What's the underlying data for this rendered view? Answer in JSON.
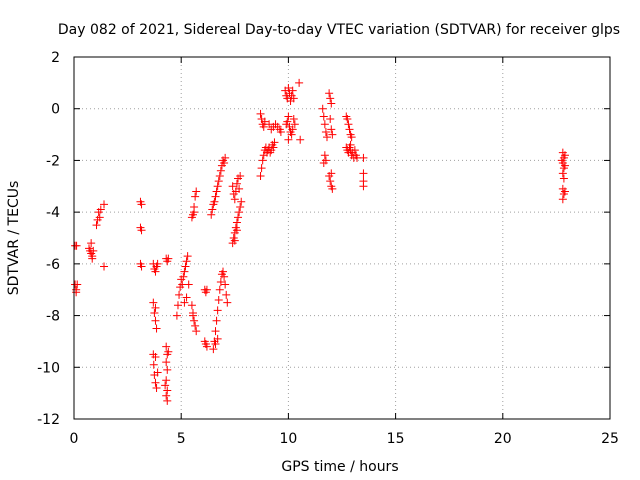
{
  "chart_data": {
    "type": "scatter",
    "title": "Day 082 of 2021, Sidereal Day-to-day VTEC variation (SDTVAR) for receiver glps",
    "xlabel": "GPS time / hours",
    "ylabel": "SDTVAR / TECUs",
    "xlim": [
      0,
      25
    ],
    "ylim": [
      -12,
      2
    ],
    "xticks": [
      0,
      5,
      10,
      15,
      20,
      25
    ],
    "yticks": [
      -12,
      -10,
      -8,
      -6,
      -4,
      -2,
      0,
      2
    ],
    "grid": true,
    "marker": "+",
    "color": "#ff0000",
    "series": [
      {
        "name": "glps",
        "points": [
          [
            0.05,
            -5.3
          ],
          [
            0.12,
            -5.3
          ],
          [
            0.05,
            -6.8
          ],
          [
            0.1,
            -7.0
          ],
          [
            0.15,
            -6.8
          ],
          [
            0.1,
            -7.1
          ],
          [
            0.7,
            -5.4
          ],
          [
            0.75,
            -5.5
          ],
          [
            0.8,
            -5.6
          ],
          [
            0.85,
            -5.8
          ],
          [
            0.9,
            -5.5
          ],
          [
            0.8,
            -5.2
          ],
          [
            0.85,
            -5.7
          ],
          [
            1.05,
            -4.5
          ],
          [
            1.1,
            -4.3
          ],
          [
            1.15,
            -4.0
          ],
          [
            1.2,
            -4.2
          ],
          [
            1.25,
            -3.9
          ],
          [
            1.4,
            -3.7
          ],
          [
            1.4,
            -6.1
          ],
          [
            3.1,
            -3.6
          ],
          [
            3.15,
            -3.7
          ],
          [
            3.1,
            -4.6
          ],
          [
            3.15,
            -4.7
          ],
          [
            3.1,
            -6.0
          ],
          [
            3.15,
            -6.1
          ],
          [
            3.7,
            -6.0
          ],
          [
            3.75,
            -6.2
          ],
          [
            3.8,
            -6.3
          ],
          [
            3.85,
            -6.1
          ],
          [
            3.9,
            -6.0
          ],
          [
            3.7,
            -7.5
          ],
          [
            3.75,
            -7.9
          ],
          [
            3.8,
            -8.2
          ],
          [
            3.85,
            -8.5
          ],
          [
            3.8,
            -7.7
          ],
          [
            3.7,
            -9.5
          ],
          [
            3.72,
            -9.9
          ],
          [
            3.75,
            -10.3
          ],
          [
            3.8,
            -10.6
          ],
          [
            3.85,
            -10.8
          ],
          [
            3.9,
            -10.2
          ],
          [
            3.8,
            -9.6
          ],
          [
            4.3,
            -5.8
          ],
          [
            4.35,
            -5.9
          ],
          [
            4.4,
            -5.8
          ],
          [
            4.3,
            -9.2
          ],
          [
            4.35,
            -9.5
          ],
          [
            4.3,
            -9.8
          ],
          [
            4.35,
            -10.1
          ],
          [
            4.3,
            -10.5
          ],
          [
            4.35,
            -10.9
          ],
          [
            4.3,
            -11.1
          ],
          [
            4.35,
            -11.3
          ],
          [
            4.25,
            -10.7
          ],
          [
            4.4,
            -9.4
          ],
          [
            4.8,
            -8.0
          ],
          [
            4.85,
            -7.6
          ],
          [
            4.9,
            -7.2
          ],
          [
            4.95,
            -6.9
          ],
          [
            5.0,
            -6.6
          ],
          [
            5.05,
            -6.8
          ],
          [
            5.1,
            -6.5
          ],
          [
            5.15,
            -6.3
          ],
          [
            5.2,
            -6.1
          ],
          [
            5.25,
            -5.9
          ],
          [
            5.3,
            -5.7
          ],
          [
            5.15,
            -7.5
          ],
          [
            5.25,
            -7.3
          ],
          [
            5.35,
            -6.8
          ],
          [
            5.5,
            -4.2
          ],
          [
            5.55,
            -4.1
          ],
          [
            5.6,
            -3.8
          ],
          [
            5.65,
            -3.4
          ],
          [
            5.7,
            -3.2
          ],
          [
            5.6,
            -4.0
          ],
          [
            5.5,
            -7.6
          ],
          [
            5.55,
            -7.9
          ],
          [
            5.6,
            -8.2
          ],
          [
            5.65,
            -8.4
          ],
          [
            5.7,
            -8.6
          ],
          [
            5.55,
            -8.0
          ],
          [
            6.1,
            -7.0
          ],
          [
            6.15,
            -7.1
          ],
          [
            6.2,
            -7.0
          ],
          [
            6.1,
            -9.0
          ],
          [
            6.15,
            -9.1
          ],
          [
            6.2,
            -9.2
          ],
          [
            6.4,
            -4.1
          ],
          [
            6.45,
            -3.9
          ],
          [
            6.5,
            -3.7
          ],
          [
            6.55,
            -3.6
          ],
          [
            6.6,
            -3.4
          ],
          [
            6.65,
            -3.2
          ],
          [
            6.7,
            -3.0
          ],
          [
            6.75,
            -2.8
          ],
          [
            6.8,
            -2.6
          ],
          [
            6.85,
            -2.4
          ],
          [
            6.9,
            -2.2
          ],
          [
            6.95,
            -2.0
          ],
          [
            7.0,
            -2.1
          ],
          [
            7.05,
            -1.9
          ],
          [
            6.5,
            -9.3
          ],
          [
            6.55,
            -9.0
          ],
          [
            6.6,
            -8.6
          ],
          [
            6.65,
            -8.2
          ],
          [
            6.7,
            -7.8
          ],
          [
            6.75,
            -7.4
          ],
          [
            6.8,
            -7.0
          ],
          [
            6.85,
            -6.7
          ],
          [
            6.9,
            -6.4
          ],
          [
            6.95,
            -6.3
          ],
          [
            7.0,
            -6.5
          ],
          [
            7.05,
            -6.8
          ],
          [
            7.1,
            -7.2
          ],
          [
            7.15,
            -7.5
          ],
          [
            6.6,
            -9.1
          ],
          [
            6.7,
            -8.9
          ],
          [
            7.4,
            -3.0
          ],
          [
            7.45,
            -3.3
          ],
          [
            7.5,
            -3.5
          ],
          [
            7.55,
            -3.2
          ],
          [
            7.6,
            -2.9
          ],
          [
            7.65,
            -2.7
          ],
          [
            7.7,
            -3.1
          ],
          [
            7.75,
            -2.6
          ],
          [
            7.4,
            -5.2
          ],
          [
            7.45,
            -5.0
          ],
          [
            7.5,
            -4.8
          ],
          [
            7.55,
            -4.6
          ],
          [
            7.6,
            -4.4
          ],
          [
            7.65,
            -4.2
          ],
          [
            7.7,
            -4.0
          ],
          [
            7.75,
            -3.8
          ],
          [
            7.8,
            -3.6
          ],
          [
            7.5,
            -5.1
          ],
          [
            7.6,
            -4.7
          ],
          [
            8.7,
            -0.2
          ],
          [
            8.75,
            -0.4
          ],
          [
            8.8,
            -0.6
          ],
          [
            8.85,
            -0.7
          ],
          [
            8.9,
            -0.5
          ],
          [
            8.7,
            -2.6
          ],
          [
            8.75,
            -2.3
          ],
          [
            8.8,
            -2.0
          ],
          [
            8.85,
            -1.8
          ],
          [
            8.9,
            -1.6
          ],
          [
            8.95,
            -1.5
          ],
          [
            9.0,
            -1.7
          ],
          [
            9.05,
            -1.6
          ],
          [
            9.1,
            -1.5
          ],
          [
            9.15,
            -1.7
          ],
          [
            9.2,
            -1.6
          ],
          [
            9.25,
            -1.4
          ],
          [
            9.3,
            -1.5
          ],
          [
            9.35,
            -1.3
          ],
          [
            9.1,
            -0.6
          ],
          [
            9.2,
            -0.8
          ],
          [
            9.3,
            -0.7
          ],
          [
            9.4,
            -0.6
          ],
          [
            9.5,
            -0.7
          ],
          [
            9.6,
            -0.8
          ],
          [
            9.65,
            -0.9
          ],
          [
            9.85,
            0.7
          ],
          [
            9.9,
            0.5
          ],
          [
            9.95,
            0.4
          ],
          [
            10.0,
            0.8
          ],
          [
            10.05,
            0.6
          ],
          [
            10.1,
            0.3
          ],
          [
            10.15,
            0.5
          ],
          [
            10.2,
            0.7
          ],
          [
            10.25,
            0.4
          ],
          [
            9.9,
            -0.6
          ],
          [
            9.95,
            -0.5
          ],
          [
            10.0,
            -0.3
          ],
          [
            10.05,
            -0.7
          ],
          [
            10.1,
            -0.9
          ],
          [
            10.15,
            -1.0
          ],
          [
            10.2,
            -0.8
          ],
          [
            10.25,
            -0.4
          ],
          [
            10.3,
            -0.6
          ],
          [
            10.0,
            -1.2
          ],
          [
            10.5,
            1.0
          ],
          [
            10.55,
            -1.2
          ],
          [
            11.6,
            0.0
          ],
          [
            11.65,
            -0.3
          ],
          [
            11.7,
            -0.6
          ],
          [
            11.75,
            -0.9
          ],
          [
            11.8,
            -1.1
          ],
          [
            11.7,
            -1.8
          ],
          [
            11.75,
            -2.0
          ],
          [
            11.65,
            -2.1
          ],
          [
            11.9,
            0.6
          ],
          [
            11.95,
            0.4
          ],
          [
            12.0,
            0.2
          ],
          [
            11.95,
            -0.4
          ],
          [
            12.0,
            -0.8
          ],
          [
            12.05,
            -1.0
          ],
          [
            11.9,
            -2.6
          ],
          [
            11.95,
            -2.8
          ],
          [
            12.0,
            -3.0
          ],
          [
            12.05,
            -3.1
          ],
          [
            12.0,
            -2.5
          ],
          [
            12.7,
            -0.3
          ],
          [
            12.75,
            -0.4
          ],
          [
            12.8,
            -0.6
          ],
          [
            12.85,
            -0.8
          ],
          [
            12.9,
            -1.0
          ],
          [
            12.95,
            -1.1
          ],
          [
            12.7,
            -1.5
          ],
          [
            12.75,
            -1.6
          ],
          [
            12.8,
            -1.7
          ],
          [
            12.85,
            -1.5
          ],
          [
            12.9,
            -1.6
          ],
          [
            12.95,
            -1.8
          ],
          [
            13.0,
            -1.7
          ],
          [
            13.05,
            -1.9
          ],
          [
            13.1,
            -1.6
          ],
          [
            13.15,
            -1.8
          ],
          [
            13.2,
            -1.9
          ],
          [
            12.9,
            -1.4
          ],
          [
            13.5,
            -1.9
          ],
          [
            13.5,
            -2.5
          ],
          [
            13.5,
            -2.8
          ],
          [
            13.5,
            -3.0
          ],
          [
            22.8,
            -1.7
          ],
          [
            22.85,
            -1.9
          ],
          [
            22.8,
            -2.1
          ],
          [
            22.85,
            -2.3
          ],
          [
            22.8,
            -2.5
          ],
          [
            22.85,
            -2.7
          ],
          [
            22.9,
            -2.2
          ],
          [
            22.9,
            -1.8
          ],
          [
            22.8,
            -3.1
          ],
          [
            22.85,
            -3.3
          ],
          [
            22.8,
            -3.5
          ],
          [
            22.9,
            -3.2
          ],
          [
            22.75,
            -2.0
          ]
        ]
      }
    ]
  }
}
